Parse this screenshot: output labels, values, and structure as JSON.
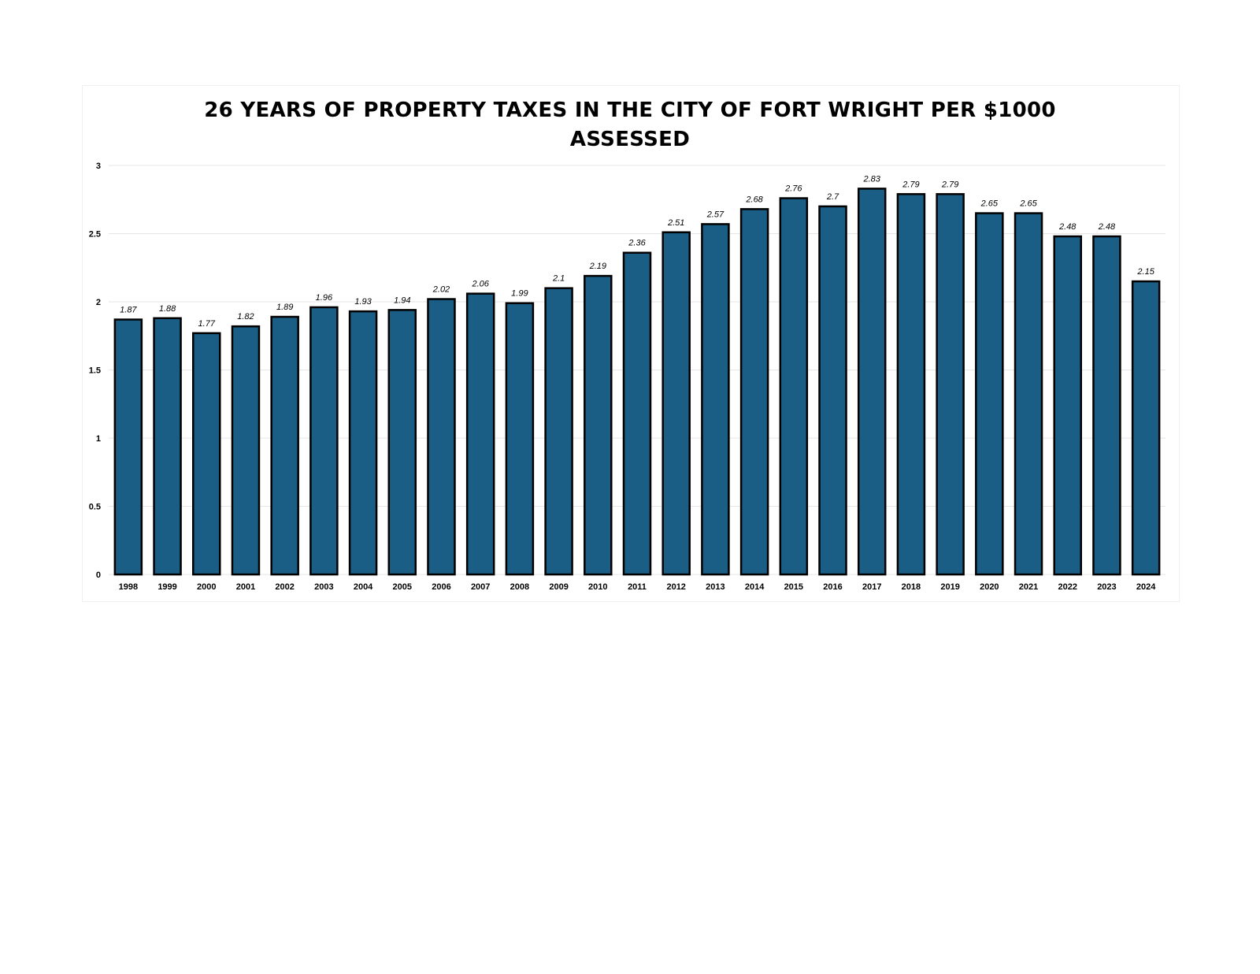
{
  "chart_data": {
    "type": "bar",
    "title": "26 YEARS OF PROPERTY TAXES IN THE CITY OF FORT WRIGHT PER $1000 ASSESSED",
    "title_lines": [
      "26 YEARS OF PROPERTY TAXES IN THE CITY OF FORT WRIGHT PER $1000",
      "ASSESSED"
    ],
    "xlabel": "",
    "ylabel": "",
    "ylim": [
      0,
      3
    ],
    "yticks": [
      "0",
      "0.5",
      "1",
      "1.5",
      "2",
      "2.5",
      "3"
    ],
    "categories": [
      "1998",
      "1999",
      "2000",
      "2001",
      "2002",
      "2003",
      "2004",
      "2005",
      "2006",
      "2007",
      "2008",
      "2009",
      "2010",
      "2011",
      "2012",
      "2013",
      "2014",
      "2015",
      "2016",
      "2017",
      "2018",
      "2019",
      "2020",
      "2021",
      "2022",
      "2023",
      "2024"
    ],
    "values": [
      1.87,
      1.88,
      1.77,
      1.82,
      1.89,
      1.96,
      1.93,
      1.94,
      2.02,
      2.06,
      1.99,
      2.1,
      2.19,
      2.36,
      2.51,
      2.57,
      2.68,
      2.76,
      2.7,
      2.83,
      2.79,
      2.79,
      2.65,
      2.65,
      2.48,
      2.48,
      2.15
    ],
    "data_labels": [
      "1.87",
      "1.88",
      "1.77",
      "1.82",
      "1.89",
      "1.96",
      "1.93",
      "1.94",
      "2.02",
      "2.06",
      "1.99",
      "2.1",
      "2.19",
      "2.36",
      "2.51",
      "2.57",
      "2.68",
      "2.76",
      "2.7",
      "2.83",
      "2.79",
      "2.79",
      "2.65",
      "2.65",
      "2.48",
      "2.48",
      "2.15"
    ],
    "grid": true,
    "legend": "none",
    "colors": {
      "bar_fill": "#1a5e85",
      "bar_stroke": "#000000",
      "grid": "#e6e6e6",
      "text": "#000000"
    }
  }
}
